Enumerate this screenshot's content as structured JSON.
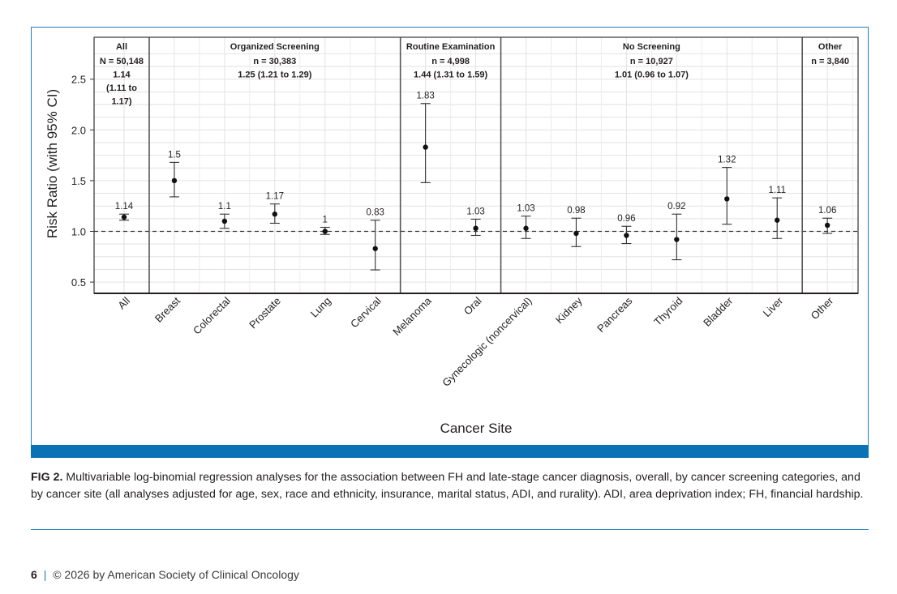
{
  "chart_data": {
    "type": "scatter",
    "subtype": "point-with-error-bars",
    "ylabel": "Risk Ratio (with 95% CI)",
    "xlabel": "Cancer Site",
    "ylim": [
      0.4,
      2.8
    ],
    "yticks": [
      "0.5",
      "1.0",
      "1.5",
      "2.0",
      "2.5"
    ],
    "reference_line": 1.0,
    "points": [
      {
        "site": "All",
        "rr": 1.14,
        "lo": 1.11,
        "hi": 1.17,
        "label": "1.14"
      },
      {
        "site": "Breast",
        "rr": 1.5,
        "lo": 1.34,
        "hi": 1.68,
        "label": "1.5"
      },
      {
        "site": "Colorectal",
        "rr": 1.1,
        "lo": 1.03,
        "hi": 1.17,
        "label": "1.1"
      },
      {
        "site": "Prostate",
        "rr": 1.17,
        "lo": 1.08,
        "hi": 1.27,
        "label": "1.17"
      },
      {
        "site": "Lung",
        "rr": 1.0,
        "lo": 0.97,
        "hi": 1.04,
        "label": "1"
      },
      {
        "site": "Cervical",
        "rr": 0.83,
        "lo": 0.62,
        "hi": 1.11,
        "label": "0.83"
      },
      {
        "site": "Melanoma",
        "rr": 1.83,
        "lo": 1.48,
        "hi": 2.26,
        "label": "1.83"
      },
      {
        "site": "Oral",
        "rr": 1.03,
        "lo": 0.96,
        "hi": 1.12,
        "label": "1.03"
      },
      {
        "site": "Gynecologic (noncervical)",
        "rr": 1.03,
        "lo": 0.93,
        "hi": 1.15,
        "label": "1.03"
      },
      {
        "site": "Kidney",
        "rr": 0.98,
        "lo": 0.85,
        "hi": 1.13,
        "label": "0.98"
      },
      {
        "site": "Pancreas",
        "rr": 0.96,
        "lo": 0.88,
        "hi": 1.05,
        "label": "0.96"
      },
      {
        "site": "Thyroid",
        "rr": 0.92,
        "lo": 0.72,
        "hi": 1.17,
        "label": "0.92"
      },
      {
        "site": "Bladder",
        "rr": 1.32,
        "lo": 1.07,
        "hi": 1.63,
        "label": "1.32"
      },
      {
        "site": "Liver",
        "rr": 1.11,
        "lo": 0.93,
        "hi": 1.33,
        "label": "1.11"
      },
      {
        "site": "Other",
        "rr": 1.06,
        "lo": 0.98,
        "hi": 1.13,
        "label": "1.06"
      }
    ],
    "groups": [
      {
        "title": "All",
        "first": 0,
        "last": 0,
        "lines": [
          "N = 50,148",
          "1.14",
          "(1.11 to",
          "1.17)"
        ]
      },
      {
        "title": "Organized Screening",
        "first": 1,
        "last": 5,
        "lines": [
          "n = 30,383",
          "1.25 (1.21 to 1.29)"
        ]
      },
      {
        "title": "Routine Examination",
        "first": 6,
        "last": 7,
        "lines": [
          "n = 4,998",
          "1.44 (1.31 to 1.59)"
        ]
      },
      {
        "title": "No Screening",
        "first": 8,
        "last": 13,
        "lines": [
          "n = 10,927",
          "1.01 (0.96 to 1.07)"
        ]
      },
      {
        "title": "Other",
        "first": 14,
        "last": 14,
        "lines": [
          "n = 3,840"
        ]
      }
    ]
  },
  "caption": {
    "label": "FIG 2.",
    "text": "Multivariable log-binomial regression analyses for the association between FH and late-stage cancer diagnosis, overall, by cancer screening categories, and by cancer site (all analyses adjusted for age, sex, race and ethnicity, insurance, marital status, ADI, and rurality). ADI, area deprivation index; FH, financial hardship."
  },
  "footer": {
    "page_number": "6",
    "separator": "|",
    "copyright": "© 2026 by American Society of Clinical Oncology"
  },
  "colors": {
    "frame_blue": "#1d7fbe",
    "bar_blue": "#0a72b5",
    "ink": "#231f20",
    "grid": "#dedede"
  }
}
